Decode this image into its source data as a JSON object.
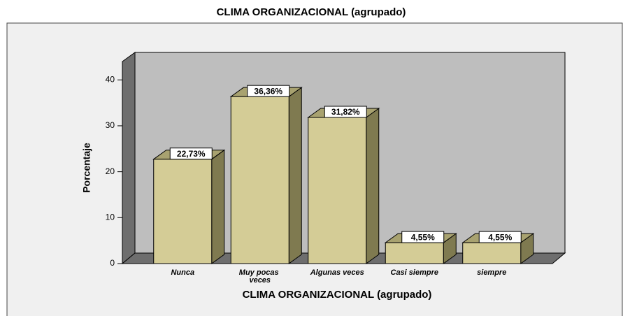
{
  "chart_data": {
    "type": "bar3d",
    "title": "CLIMA ORGANIZACIONAL (agrupado)",
    "x_label": "CLIMA ORGANIZACIONAL (agrupado)",
    "y_label": "Porcentaje",
    "categories": [
      "Nunca",
      "Muy pocas veces",
      "Algunas veces",
      "Casi siempre",
      "siempre"
    ],
    "values": [
      22.73,
      36.36,
      31.82,
      4.55,
      4.55
    ],
    "value_labels": [
      "22,73%",
      "36,36%",
      "31,82%",
      "4,55%",
      "4,55%"
    ],
    "color": "#d4cc96",
    "ylim": [
      0,
      44
    ],
    "yticks": [
      0,
      10,
      20,
      30,
      40
    ],
    "grid": false
  }
}
